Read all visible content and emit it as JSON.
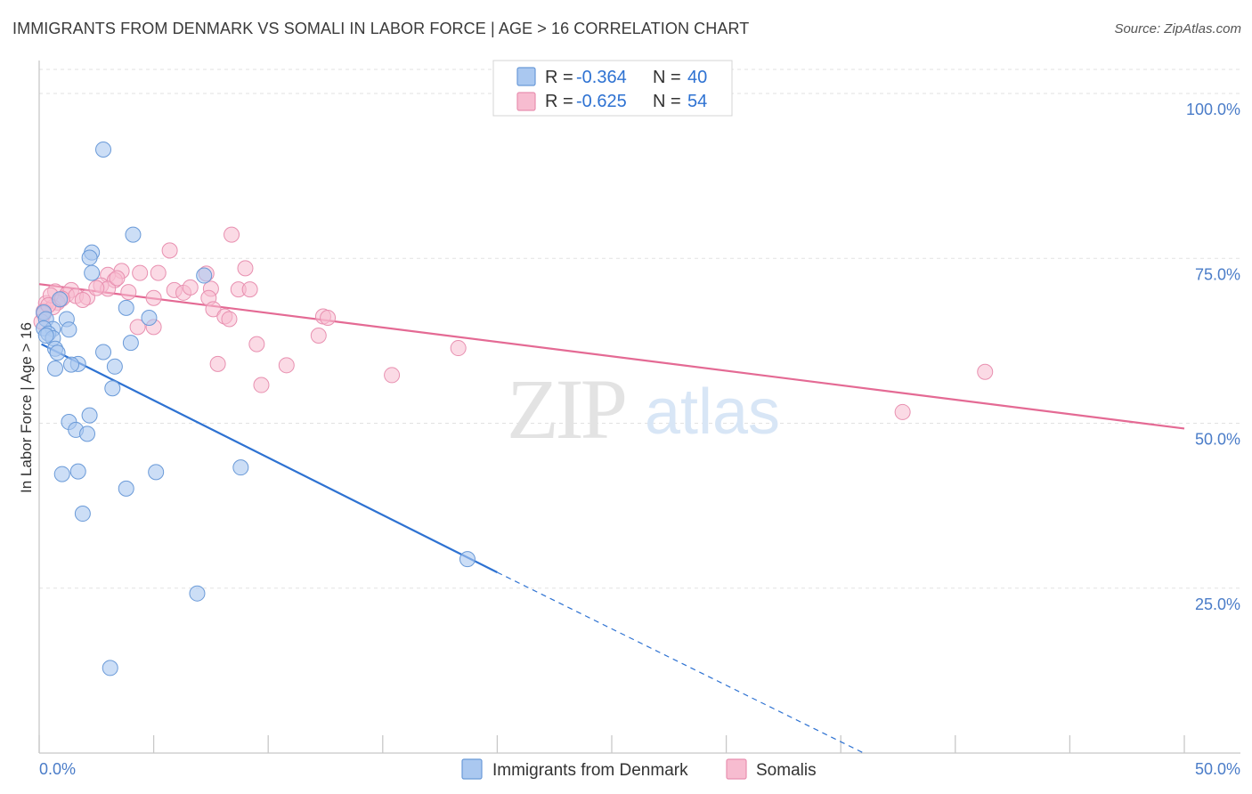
{
  "header": {
    "title": "IMMIGRANTS FROM DENMARK VS SOMALI IN LABOR FORCE | AGE > 16 CORRELATION CHART",
    "source": "Source: ZipAtlas.com"
  },
  "watermark": {
    "zip": "ZIP",
    "atlas": "atlas"
  },
  "colors": {
    "blue_fill": "#aac8f0",
    "blue_stroke": "#6a9ad8",
    "blue_line": "#2e72d2",
    "pink_fill": "#f7bcd0",
    "pink_stroke": "#e890b0",
    "pink_line": "#e46a94",
    "tick_text": "#4a7cc8",
    "grid": "#e2e2e2"
  },
  "legend": {
    "rows": [
      {
        "r_label": "R = ",
        "r_value": "-0.364",
        "n_label": "N = ",
        "n_value": "40"
      },
      {
        "r_label": "R = ",
        "r_value": "-0.625",
        "n_label": "N = ",
        "n_value": "54"
      }
    ]
  },
  "chart_data": {
    "type": "scatter",
    "title": "IMMIGRANTS FROM DENMARK VS SOMALI IN LABOR FORCE | AGE > 16 CORRELATION CHART",
    "xlabel": "",
    "ylabel": "In Labor Force | Age > 16",
    "xlim": [
      0,
      50
    ],
    "ylim": [
      0,
      105
    ],
    "x_tick_labels": [
      "0.0%",
      "50.0%"
    ],
    "y_ticks": [
      25,
      50,
      75,
      100
    ],
    "y_tick_labels": [
      "25.0%",
      "50.0%",
      "75.0%",
      "100.0%"
    ],
    "grid": true,
    "series": [
      {
        "name": "Immigrants from Denmark",
        "color": "#aac8f0",
        "trend": {
          "x_start": 0.1,
          "y_start": 62,
          "x_solid_end": 20,
          "y_solid_end": 27.4,
          "x_dash_end": 36,
          "y_dash_end": 0
        },
        "points": [
          [
            2.8,
            91.5
          ],
          [
            4.1,
            78.6
          ],
          [
            2.3,
            75.9
          ],
          [
            2.2,
            75.1
          ],
          [
            7.2,
            72.4
          ],
          [
            2.3,
            72.8
          ],
          [
            0.9,
            68.8
          ],
          [
            3.8,
            67.5
          ],
          [
            0.2,
            66.8
          ],
          [
            4.8,
            66.0
          ],
          [
            0.3,
            65.8
          ],
          [
            1.2,
            65.8
          ],
          [
            0.6,
            64.3
          ],
          [
            0.2,
            64.4
          ],
          [
            1.3,
            64.2
          ],
          [
            0.4,
            63.6
          ],
          [
            0.6,
            62.9
          ],
          [
            0.3,
            63.3
          ],
          [
            4.0,
            62.2
          ],
          [
            0.7,
            61.3
          ],
          [
            0.8,
            60.7
          ],
          [
            2.8,
            60.8
          ],
          [
            1.7,
            59.0
          ],
          [
            1.4,
            58.9
          ],
          [
            0.7,
            58.3
          ],
          [
            3.3,
            58.6
          ],
          [
            3.2,
            55.3
          ],
          [
            2.2,
            51.2
          ],
          [
            1.3,
            50.2
          ],
          [
            1.6,
            49.0
          ],
          [
            2.1,
            48.4
          ],
          [
            1.0,
            42.3
          ],
          [
            1.7,
            42.7
          ],
          [
            5.1,
            42.6
          ],
          [
            8.8,
            43.3
          ],
          [
            3.8,
            40.1
          ],
          [
            1.9,
            36.3
          ],
          [
            6.9,
            24.2
          ],
          [
            18.7,
            29.4
          ],
          [
            3.1,
            12.9
          ]
        ]
      },
      {
        "name": "Somalis",
        "color": "#f7bcd0",
        "trend": {
          "x_start": 0,
          "y_start": 71.1,
          "x_end": 50,
          "y_end": 49.2
        },
        "points": [
          [
            8.4,
            78.6
          ],
          [
            5.7,
            76.2
          ],
          [
            9.0,
            73.5
          ],
          [
            3.6,
            73.1
          ],
          [
            5.2,
            72.8
          ],
          [
            4.4,
            72.8
          ],
          [
            7.3,
            72.7
          ],
          [
            3.0,
            72.5
          ],
          [
            3.3,
            71.7
          ],
          [
            2.7,
            70.9
          ],
          [
            3.0,
            70.4
          ],
          [
            7.5,
            70.4
          ],
          [
            8.7,
            70.3
          ],
          [
            9.2,
            70.3
          ],
          [
            5.9,
            70.2
          ],
          [
            1.4,
            70.2
          ],
          [
            0.7,
            70.0
          ],
          [
            3.9,
            69.9
          ],
          [
            6.3,
            69.8
          ],
          [
            1.2,
            69.5
          ],
          [
            1.6,
            69.3
          ],
          [
            2.1,
            69.1
          ],
          [
            5.0,
            69.0
          ],
          [
            7.4,
            69.0
          ],
          [
            1.9,
            68.7
          ],
          [
            0.9,
            68.7
          ],
          [
            0.8,
            68.3
          ],
          [
            0.3,
            68.2
          ],
          [
            0.6,
            67.6
          ],
          [
            7.6,
            67.3
          ],
          [
            0.2,
            67.0
          ],
          [
            0.2,
            66.6
          ],
          [
            12.4,
            66.2
          ],
          [
            12.6,
            66.0
          ],
          [
            8.1,
            66.2
          ],
          [
            8.3,
            65.8
          ],
          [
            0.1,
            65.4
          ],
          [
            4.3,
            64.6
          ],
          [
            5.0,
            64.6
          ],
          [
            12.2,
            63.3
          ],
          [
            9.5,
            62.0
          ],
          [
            18.3,
            61.4
          ],
          [
            7.8,
            59.0
          ],
          [
            10.8,
            58.8
          ],
          [
            15.4,
            57.3
          ],
          [
            41.3,
            57.8
          ],
          [
            9.7,
            55.8
          ],
          [
            37.7,
            51.7
          ],
          [
            0.5,
            69.4
          ],
          [
            2.5,
            70.5
          ],
          [
            6.6,
            70.6
          ],
          [
            1.0,
            68.9
          ],
          [
            3.4,
            72.0
          ],
          [
            0.4,
            67.9
          ]
        ]
      }
    ]
  }
}
